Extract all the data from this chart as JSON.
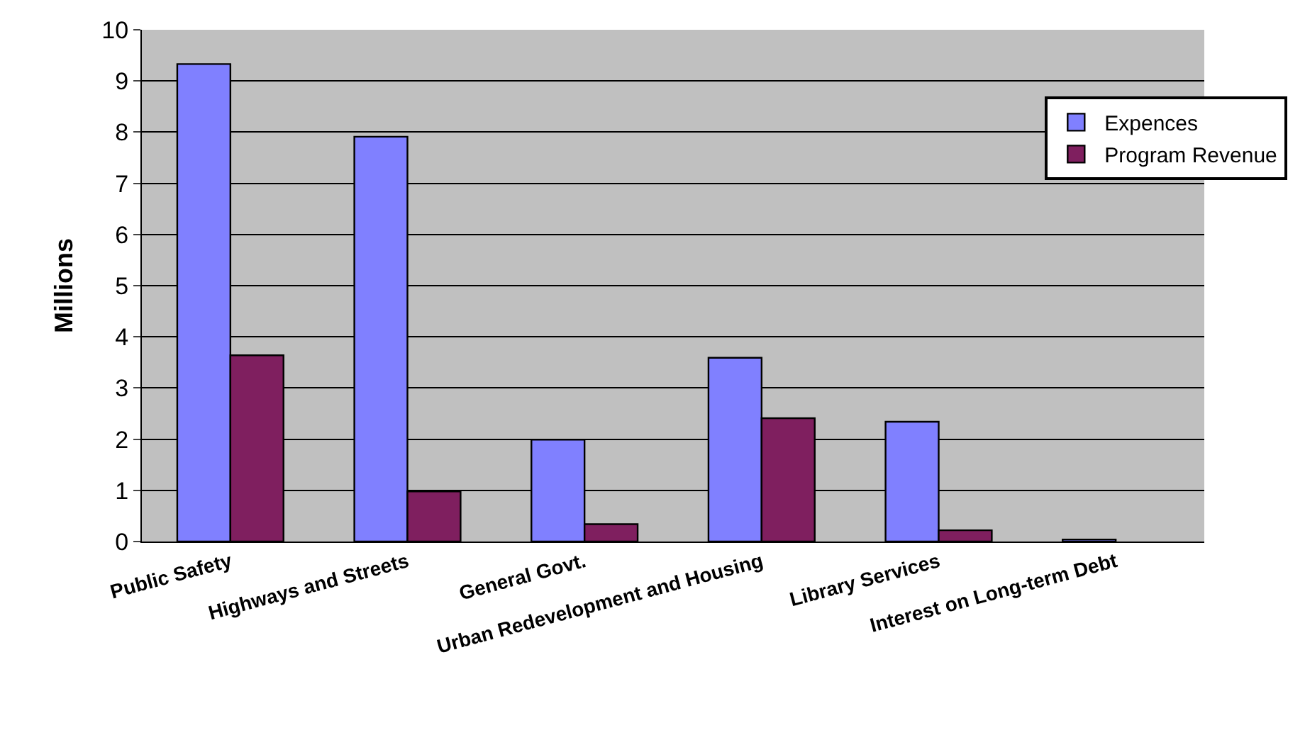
{
  "chart_data": {
    "type": "bar",
    "ylabel": "Millions",
    "categories": [
      "Public Safety",
      "Highways and Streets",
      "General Govt.",
      "Urban Redevelopment and Housing",
      "Library Services",
      "Interest on Long-term Debt"
    ],
    "series": [
      {
        "name": "Expences",
        "color": "#8080ff",
        "values": [
          9.33,
          7.91,
          1.99,
          3.59,
          2.34,
          0.04
        ]
      },
      {
        "name": "Program Revenue",
        "color": "#7f1f5f",
        "values": [
          3.64,
          0.98,
          0.34,
          2.41,
          0.22,
          null
        ]
      }
    ],
    "ylim": [
      0,
      10
    ],
    "yticks": [
      0,
      1,
      2,
      3,
      4,
      5,
      6,
      7,
      8,
      9,
      10
    ],
    "grid": "y",
    "legend": "top right"
  }
}
